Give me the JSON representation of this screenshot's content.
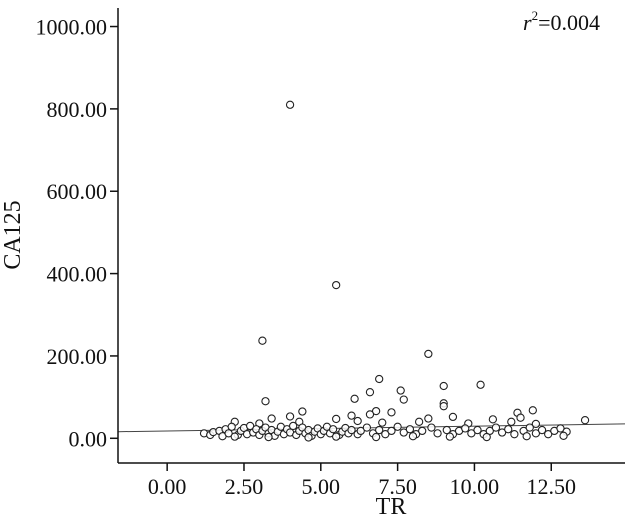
{
  "chart_data": {
    "type": "scatter",
    "xlabel": "TR",
    "ylabel": "CA125",
    "xlim": [
      -1.6,
      14.9
    ],
    "ylim": [
      -60,
      1045
    ],
    "x_ticks": [
      0.0,
      2.5,
      5.0,
      7.5,
      10.0,
      12.5
    ],
    "x_tick_labels": [
      "0.00",
      "2.50",
      "5.00",
      "7.50",
      "10.00",
      "12.50"
    ],
    "y_ticks": [
      0,
      200,
      400,
      600,
      800,
      1000
    ],
    "y_tick_labels": [
      "0.00",
      "200.00",
      "400.00",
      "600.00",
      "800.00",
      "1000.00"
    ],
    "grid": false,
    "annotation": {
      "var": "r",
      "exp": "2",
      "rest": "=0.004"
    },
    "fit_line": {
      "x": [
        -1.6,
        14.9
      ],
      "y": [
        16,
        35
      ]
    },
    "points": [
      {
        "x": 4.0,
        "y": 810
      },
      {
        "x": 5.5,
        "y": 372
      },
      {
        "x": 3.1,
        "y": 237
      },
      {
        "x": 8.5,
        "y": 205
      },
      {
        "x": 6.9,
        "y": 144
      },
      {
        "x": 10.2,
        "y": 130
      },
      {
        "x": 9.0,
        "y": 127
      },
      {
        "x": 7.6,
        "y": 116
      },
      {
        "x": 6.6,
        "y": 112
      },
      {
        "x": 6.1,
        "y": 96
      },
      {
        "x": 7.7,
        "y": 94
      },
      {
        "x": 3.2,
        "y": 90
      },
      {
        "x": 9.0,
        "y": 85
      },
      {
        "x": 9.0,
        "y": 78
      },
      {
        "x": 11.9,
        "y": 68
      },
      {
        "x": 6.8,
        "y": 66
      },
      {
        "x": 4.4,
        "y": 65
      },
      {
        "x": 11.4,
        "y": 62
      },
      {
        "x": 6.6,
        "y": 58
      },
      {
        "x": 7.3,
        "y": 63
      },
      {
        "x": 6.0,
        "y": 55
      },
      {
        "x": 9.3,
        "y": 52
      },
      {
        "x": 4.0,
        "y": 53
      },
      {
        "x": 3.4,
        "y": 48
      },
      {
        "x": 5.5,
        "y": 47
      },
      {
        "x": 8.5,
        "y": 48
      },
      {
        "x": 11.5,
        "y": 50
      },
      {
        "x": 10.6,
        "y": 46
      },
      {
        "x": 13.6,
        "y": 44
      },
      {
        "x": 2.2,
        "y": 40
      },
      {
        "x": 3.0,
        "y": 36
      },
      {
        "x": 4.3,
        "y": 40
      },
      {
        "x": 6.2,
        "y": 42
      },
      {
        "x": 7.0,
        "y": 38
      },
      {
        "x": 8.2,
        "y": 40
      },
      {
        "x": 9.8,
        "y": 36
      },
      {
        "x": 11.2,
        "y": 40
      },
      {
        "x": 12.0,
        "y": 35
      },
      {
        "x": 1.2,
        "y": 12
      },
      {
        "x": 1.4,
        "y": 8
      },
      {
        "x": 1.5,
        "y": 15
      },
      {
        "x": 1.7,
        "y": 18
      },
      {
        "x": 1.8,
        "y": 5
      },
      {
        "x": 1.9,
        "y": 22
      },
      {
        "x": 2.0,
        "y": 12
      },
      {
        "x": 2.1,
        "y": 28
      },
      {
        "x": 2.3,
        "y": 8
      },
      {
        "x": 2.4,
        "y": 18
      },
      {
        "x": 2.5,
        "y": 25
      },
      {
        "x": 2.6,
        "y": 10
      },
      {
        "x": 2.7,
        "y": 30
      },
      {
        "x": 2.8,
        "y": 14
      },
      {
        "x": 2.9,
        "y": 22
      },
      {
        "x": 3.0,
        "y": 8
      },
      {
        "x": 3.1,
        "y": 18
      },
      {
        "x": 3.2,
        "y": 26
      },
      {
        "x": 3.3,
        "y": 12
      },
      {
        "x": 3.4,
        "y": 20
      },
      {
        "x": 3.5,
        "y": 6
      },
      {
        "x": 3.6,
        "y": 16
      },
      {
        "x": 3.7,
        "y": 28
      },
      {
        "x": 3.8,
        "y": 10
      },
      {
        "x": 3.9,
        "y": 22
      },
      {
        "x": 4.0,
        "y": 14
      },
      {
        "x": 4.1,
        "y": 30
      },
      {
        "x": 4.2,
        "y": 8
      },
      {
        "x": 4.3,
        "y": 18
      },
      {
        "x": 4.4,
        "y": 26
      },
      {
        "x": 4.5,
        "y": 12
      },
      {
        "x": 4.6,
        "y": 20
      },
      {
        "x": 4.7,
        "y": 6
      },
      {
        "x": 4.8,
        "y": 16
      },
      {
        "x": 4.9,
        "y": 24
      },
      {
        "x": 5.0,
        "y": 10
      },
      {
        "x": 5.1,
        "y": 18
      },
      {
        "x": 5.2,
        "y": 28
      },
      {
        "x": 5.3,
        "y": 12
      },
      {
        "x": 5.4,
        "y": 22
      },
      {
        "x": 5.6,
        "y": 8
      },
      {
        "x": 5.7,
        "y": 16
      },
      {
        "x": 5.8,
        "y": 25
      },
      {
        "x": 5.9,
        "y": 12
      },
      {
        "x": 6.0,
        "y": 20
      },
      {
        "x": 6.2,
        "y": 10
      },
      {
        "x": 6.3,
        "y": 18
      },
      {
        "x": 6.5,
        "y": 26
      },
      {
        "x": 6.7,
        "y": 12
      },
      {
        "x": 6.9,
        "y": 20
      },
      {
        "x": 7.1,
        "y": 10
      },
      {
        "x": 7.3,
        "y": 18
      },
      {
        "x": 7.5,
        "y": 28
      },
      {
        "x": 7.7,
        "y": 14
      },
      {
        "x": 7.9,
        "y": 22
      },
      {
        "x": 8.1,
        "y": 10
      },
      {
        "x": 8.3,
        "y": 18
      },
      {
        "x": 8.6,
        "y": 26
      },
      {
        "x": 8.8,
        "y": 12
      },
      {
        "x": 9.1,
        "y": 20
      },
      {
        "x": 9.3,
        "y": 10
      },
      {
        "x": 9.5,
        "y": 18
      },
      {
        "x": 9.7,
        "y": 24
      },
      {
        "x": 9.9,
        "y": 12
      },
      {
        "x": 10.1,
        "y": 20
      },
      {
        "x": 10.3,
        "y": 10
      },
      {
        "x": 10.5,
        "y": 18
      },
      {
        "x": 10.7,
        "y": 26
      },
      {
        "x": 10.9,
        "y": 14
      },
      {
        "x": 11.1,
        "y": 22
      },
      {
        "x": 11.3,
        "y": 10
      },
      {
        "x": 11.6,
        "y": 18
      },
      {
        "x": 11.8,
        "y": 26
      },
      {
        "x": 12.0,
        "y": 12
      },
      {
        "x": 12.2,
        "y": 20
      },
      {
        "x": 12.4,
        "y": 10
      },
      {
        "x": 12.6,
        "y": 18
      },
      {
        "x": 12.8,
        "y": 24
      },
      {
        "x": 13.0,
        "y": 16
      },
      {
        "x": 2.2,
        "y": 4
      },
      {
        "x": 3.3,
        "y": 3
      },
      {
        "x": 4.6,
        "y": 2
      },
      {
        "x": 5.5,
        "y": 4
      },
      {
        "x": 6.8,
        "y": 3
      },
      {
        "x": 8.0,
        "y": 5
      },
      {
        "x": 9.2,
        "y": 4
      },
      {
        "x": 10.4,
        "y": 3
      },
      {
        "x": 11.7,
        "y": 5
      },
      {
        "x": 12.9,
        "y": 6
      }
    ]
  }
}
